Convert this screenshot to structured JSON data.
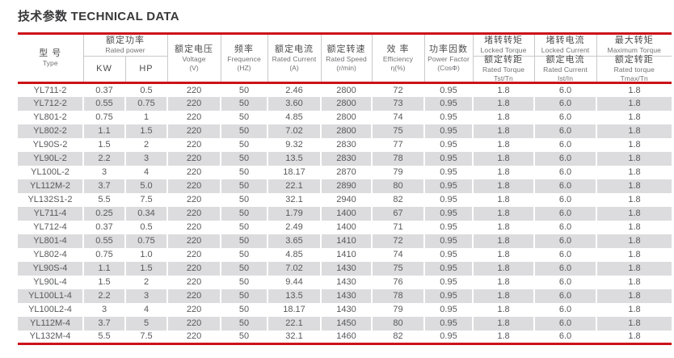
{
  "title": "技术参数 TECHNICAL DATA",
  "colors": {
    "accent_red": "#cb1319",
    "row_alt_gray": "#dcdcde",
    "header_line_gray": "#c9c9c9",
    "text_gray": "#58595b"
  },
  "table": {
    "header": {
      "type": {
        "zh": "型 号",
        "en": "Type"
      },
      "rated_power": {
        "zh": "额定功率",
        "en": "Rated power",
        "kw": "KW",
        "hp": "HP"
      },
      "voltage": {
        "zh": "额定电压",
        "en": "Voltage",
        "unit": "(V)"
      },
      "frequency": {
        "zh": "频率",
        "en": "Frequence",
        "unit": "(HZ)"
      },
      "rated_current": {
        "zh": "额定电流",
        "en": "Rated Current",
        "unit": "(A)"
      },
      "rated_speed": {
        "zh": "额定转速",
        "en": "Rated Speed",
        "unit": "(r/min)"
      },
      "efficiency": {
        "zh": "效 率",
        "en": "Efficiency",
        "unit": "η(%)"
      },
      "power_factor": {
        "zh": "功率因数",
        "en": "Power Factor",
        "unit": "(CosΦ)"
      },
      "locked_torque": {
        "zh_top": "堵转转矩",
        "en_top": "Locked Torque",
        "zh_bottom": "额定转距",
        "en_bottom": "Rated Torque",
        "ratio": "Tst/Tn"
      },
      "locked_current": {
        "zh_top": "堵转电流",
        "en_top": "Locked Current",
        "zh_bottom": "额定电流",
        "en_bottom": "Rated Current",
        "ratio": "Ist/In"
      },
      "maximum_torque": {
        "zh_top": "最大转矩",
        "en_top": "Maximum Torque",
        "zh_bottom": "额定转距",
        "en_bottom": "Rated torque",
        "ratio": "Tmax/Tn"
      }
    },
    "rows": [
      [
        "YL711-2",
        "0.37",
        "0.5",
        "220",
        "50",
        "2.46",
        "2800",
        "72",
        "0.95",
        "1.8",
        "6.0",
        "1.8"
      ],
      [
        "YL712-2",
        "0.55",
        "0.75",
        "220",
        "50",
        "3.60",
        "2800",
        "73",
        "0.95",
        "1.8",
        "6.0",
        "1.8"
      ],
      [
        "YL801-2",
        "0.75",
        "1",
        "220",
        "50",
        "4.85",
        "2800",
        "74",
        "0.95",
        "1.8",
        "6.0",
        "1.8"
      ],
      [
        "YL802-2",
        "1.1",
        "1.5",
        "220",
        "50",
        "7.02",
        "2800",
        "75",
        "0.95",
        "1.8",
        "6.0",
        "1.8"
      ],
      [
        "YL90S-2",
        "1.5",
        "2",
        "220",
        "50",
        "9.32",
        "2830",
        "77",
        "0.95",
        "1.8",
        "6.0",
        "1.8"
      ],
      [
        "YL90L-2",
        "2.2",
        "3",
        "220",
        "50",
        "13.5",
        "2830",
        "78",
        "0.95",
        "1.8",
        "6.0",
        "1.8"
      ],
      [
        "YL100L-2",
        "3",
        "4",
        "220",
        "50",
        "18.17",
        "2870",
        "79",
        "0.95",
        "1.8",
        "6.0",
        "1.8"
      ],
      [
        "YL112M-2",
        "3.7",
        "5.0",
        "220",
        "50",
        "22.1",
        "2890",
        "80",
        "0.95",
        "1.8",
        "6.0",
        "1.8"
      ],
      [
        "YL132S1-2",
        "5.5",
        "7.5",
        "220",
        "50",
        "32.1",
        "2940",
        "82",
        "0.95",
        "1.8",
        "6.0",
        "1.8"
      ],
      [
        "YL711-4",
        "0.25",
        "0.34",
        "220",
        "50",
        "1.79",
        "1400",
        "67",
        "0.95",
        "1.8",
        "6.0",
        "1.8"
      ],
      [
        "YL712-4",
        "0.37",
        "0.5",
        "220",
        "50",
        "2.49",
        "1400",
        "71",
        "0.95",
        "1.8",
        "6.0",
        "1.8"
      ],
      [
        "YL801-4",
        "0.55",
        "0.75",
        "220",
        "50",
        "3.65",
        "1410",
        "72",
        "0.95",
        "1.8",
        "6.0",
        "1.8"
      ],
      [
        "YL802-4",
        "0.75",
        "1.0",
        "220",
        "50",
        "4.85",
        "1410",
        "74",
        "0.95",
        "1.8",
        "6.0",
        "1.8"
      ],
      [
        "YL90S-4",
        "1.1",
        "1.5",
        "220",
        "50",
        "7.02",
        "1430",
        "75",
        "0.95",
        "1.8",
        "6.0",
        "1.8"
      ],
      [
        "YL90L-4",
        "1.5",
        "2",
        "220",
        "50",
        "9.44",
        "1430",
        "76",
        "0.95",
        "1.8",
        "6.0",
        "1.8"
      ],
      [
        "YL100L1-4",
        "2.2",
        "3",
        "220",
        "50",
        "13.5",
        "1430",
        "78",
        "0.95",
        "1.8",
        "6.0",
        "1.8"
      ],
      [
        "YL100L2-4",
        "3",
        "4",
        "220",
        "50",
        "18.17",
        "1430",
        "79",
        "0.95",
        "1.8",
        "6.0",
        "1.8"
      ],
      [
        "YL112M-4",
        "3.7",
        "5",
        "220",
        "50",
        "22.1",
        "1450",
        "80",
        "0.95",
        "1.8",
        "6.0",
        "1.8"
      ],
      [
        "YL132M-4",
        "5.5",
        "7.5",
        "220",
        "50",
        "32.1",
        "1460",
        "82",
        "0.95",
        "1.8",
        "6.0",
        "1.8"
      ]
    ]
  }
}
